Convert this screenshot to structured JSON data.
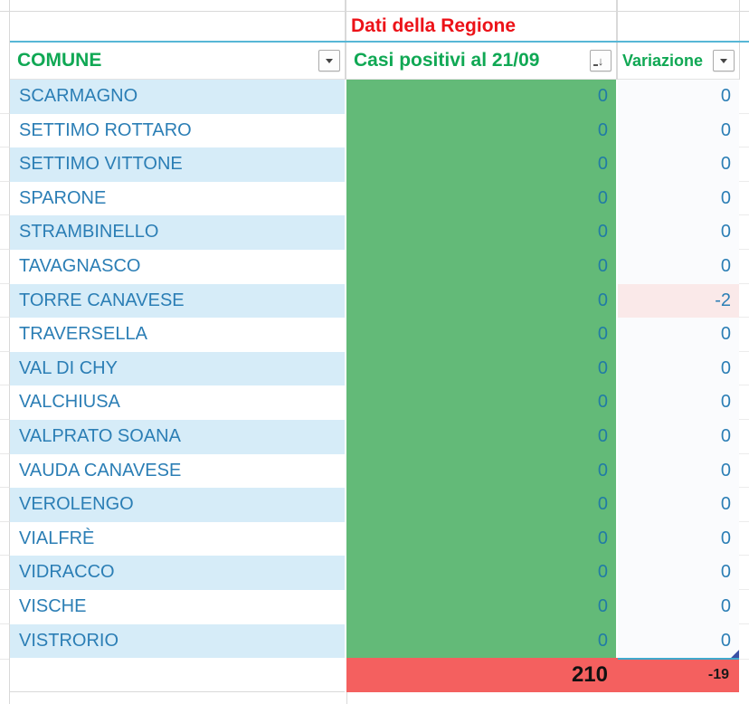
{
  "sheet_title": "Dati della Regione",
  "columns": {
    "comune": {
      "label": "COMUNE"
    },
    "casi": {
      "label": "Casi positivi al 21/09"
    },
    "variazione": {
      "label": "Variazione"
    }
  },
  "rows": [
    {
      "comune": "SCARMAGNO",
      "casi": "0",
      "variazione": "0"
    },
    {
      "comune": "SETTIMO ROTTARO",
      "casi": "0",
      "variazione": "0"
    },
    {
      "comune": "SETTIMO VITTONE",
      "casi": "0",
      "variazione": "0"
    },
    {
      "comune": "SPARONE",
      "casi": "0",
      "variazione": "0"
    },
    {
      "comune": "STRAMBINELLO",
      "casi": "0",
      "variazione": "0"
    },
    {
      "comune": "TAVAGNASCO",
      "casi": "0",
      "variazione": "0"
    },
    {
      "comune": "TORRE CANAVESE",
      "casi": "0",
      "variazione": "-2"
    },
    {
      "comune": "TRAVERSELLA",
      "casi": "0",
      "variazione": "0"
    },
    {
      "comune": "VAL DI CHY",
      "casi": "0",
      "variazione": "0"
    },
    {
      "comune": "VALCHIUSA",
      "casi": "0",
      "variazione": "0"
    },
    {
      "comune": "VALPRATO SOANA",
      "casi": "0",
      "variazione": "0"
    },
    {
      "comune": "VAUDA CANAVESE",
      "casi": "0",
      "variazione": "0"
    },
    {
      "comune": "VEROLENGO",
      "casi": "0",
      "variazione": "0"
    },
    {
      "comune": "VIALFRÈ",
      "casi": "0",
      "variazione": "0"
    },
    {
      "comune": "VIDRACCO",
      "casi": "0",
      "variazione": "0"
    },
    {
      "comune": "VISCHE",
      "casi": "0",
      "variazione": "0"
    },
    {
      "comune": "VISTRORIO",
      "casi": "0",
      "variazione": "0"
    }
  ],
  "totals": {
    "casi": "210",
    "variazione": "-19"
  },
  "icons": {
    "sort_desc": "↓"
  },
  "colors": {
    "header_green": "#10a854",
    "title_red": "#ec1218",
    "cell_blue_text": "#2b7eb5",
    "band_blue": "#d6ecf8",
    "casi_green": "#63ba78",
    "total_red": "#f4605f",
    "negative_pink": "#fae9e9",
    "divider_blue": "#57b7d6"
  }
}
